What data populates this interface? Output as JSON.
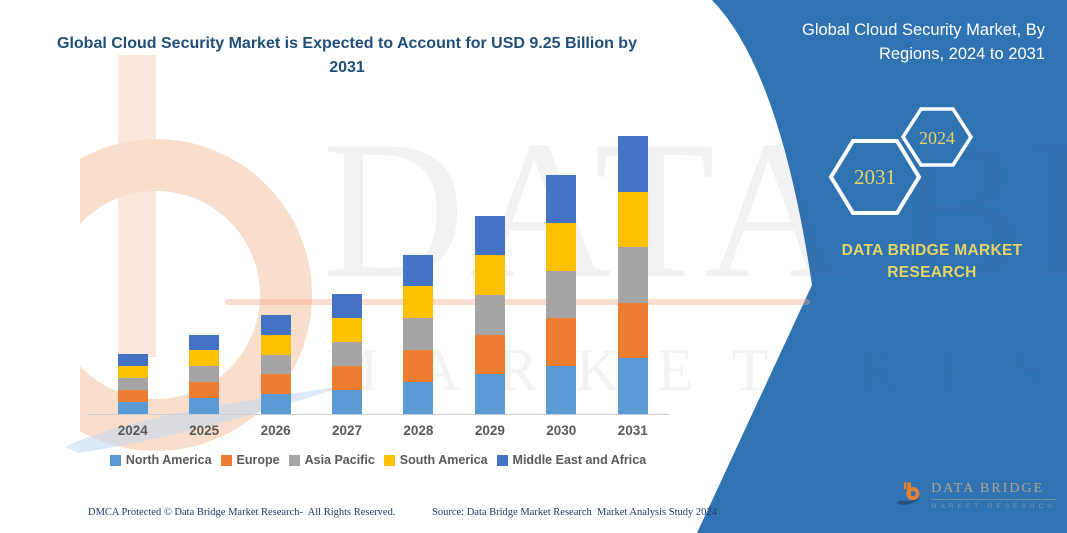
{
  "title": {
    "text": "Global Cloud Security Market is Expected to Account for USD 9.25 Billion by 2031",
    "color": "#1F4E79"
  },
  "side_panel": {
    "color": "#2F73B3",
    "title": "Global Cloud Security Market, By Regions, 2024 to 2031",
    "hexagons": [
      {
        "label": "2031"
      },
      {
        "label": "2024"
      }
    ],
    "brand_name": "DATA BRIDGE MARKET RESEARCH",
    "accent_text_color": "#E6D566"
  },
  "watermark": {
    "line1": "DATA BRIDGE",
    "line2": "MARKET RESEARCH"
  },
  "chart_data": {
    "type": "bar",
    "stacked": true,
    "title": "Global Cloud Security Market, By Regions, 2024 to 2031",
    "categories": [
      "2024",
      "2025",
      "2026",
      "2027",
      "2028",
      "2029",
      "2030",
      "2031"
    ],
    "series": [
      {
        "name": "North America",
        "color": "#5B9BD5",
        "values": [
          0.4,
          0.53,
          0.66,
          0.8,
          1.06,
          1.32,
          1.59,
          1.85
        ]
      },
      {
        "name": "Europe",
        "color": "#ED7D31",
        "values": [
          0.4,
          0.53,
          0.66,
          0.8,
          1.06,
          1.32,
          1.59,
          1.85
        ]
      },
      {
        "name": "Asia Pacific",
        "color": "#A5A5A5",
        "values": [
          0.4,
          0.53,
          0.66,
          0.8,
          1.06,
          1.32,
          1.59,
          1.85
        ]
      },
      {
        "name": "South America",
        "color": "#FFC000",
        "values": [
          0.4,
          0.53,
          0.66,
          0.8,
          1.06,
          1.32,
          1.59,
          1.85
        ]
      },
      {
        "name": "Middle East and Africa",
        "color": "#4472C4",
        "values": [
          0.4,
          0.53,
          0.66,
          0.8,
          1.06,
          1.32,
          1.59,
          1.85
        ]
      }
    ],
    "totals": [
      2.0,
      2.65,
      3.3,
      4.0,
      5.3,
      6.6,
      7.95,
      9.25
    ],
    "units": "USD Billion (estimated from bar heights; 2031 total stated as USD 9.25 Billion)",
    "xlabel": "",
    "ylabel": "",
    "y_axis_shown": false,
    "grid": false,
    "legend_position": "bottom",
    "axis_line_color": "#CFCFCF",
    "label_color": "#595959"
  },
  "footer": {
    "dmca": "DMCA Protected © Data Bridge Market Research-  All Rights Reserved.",
    "source": "Source: Data Bridge Market Research  Market Analysis Study 2024"
  },
  "logo": {
    "name": "DATA BRIDGE",
    "subtitle": "MARKET RESEARCH"
  }
}
